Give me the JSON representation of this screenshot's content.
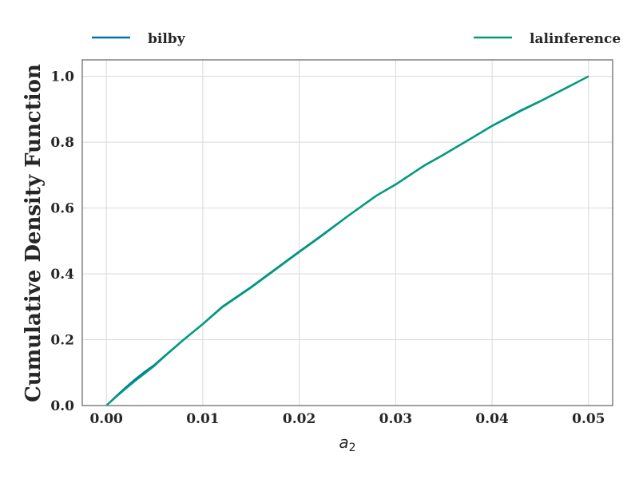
{
  "chart_data": {
    "type": "line",
    "title": "",
    "xlabel": "a",
    "xlabel_sub": "2",
    "ylabel": "Cumulative Density Function",
    "xlim": [
      -0.0025,
      0.0525
    ],
    "ylim": [
      0.0,
      1.05
    ],
    "xticks": [
      0.0,
      0.01,
      0.02,
      0.03,
      0.04,
      0.05
    ],
    "xtick_labels": [
      "0.00",
      "0.01",
      "0.02",
      "0.03",
      "0.04",
      "0.05"
    ],
    "yticks": [
      0.0,
      0.2,
      0.4,
      0.6,
      0.8,
      1.0
    ],
    "ytick_labels": [
      "0.0",
      "0.2",
      "0.4",
      "0.6",
      "0.8",
      "1.0"
    ],
    "grid": true,
    "legend": "top, spanning plot width",
    "series": [
      {
        "name": "bilby",
        "color": "#0072b2",
        "x": [
          0.0,
          0.001,
          0.002,
          0.003,
          0.004,
          0.005,
          0.006,
          0.008,
          0.01,
          0.012,
          0.015,
          0.018,
          0.02,
          0.022,
          0.025,
          0.028,
          0.03,
          0.033,
          0.035,
          0.038,
          0.04,
          0.043,
          0.045,
          0.048,
          0.05
        ],
        "y": [
          0.0,
          0.028,
          0.055,
          0.08,
          0.103,
          0.124,
          0.15,
          0.2,
          0.248,
          0.3,
          0.36,
          0.425,
          0.468,
          0.51,
          0.575,
          0.638,
          0.672,
          0.73,
          0.763,
          0.815,
          0.85,
          0.897,
          0.925,
          0.97,
          1.0
        ]
      },
      {
        "name": "lalinference",
        "color": "#009e73",
        "x": [
          0.0,
          0.001,
          0.002,
          0.003,
          0.004,
          0.005,
          0.006,
          0.008,
          0.01,
          0.012,
          0.015,
          0.018,
          0.02,
          0.022,
          0.025,
          0.028,
          0.03,
          0.033,
          0.035,
          0.038,
          0.04,
          0.043,
          0.045,
          0.048,
          0.05
        ],
        "y": [
          0.0,
          0.026,
          0.051,
          0.075,
          0.098,
          0.121,
          0.148,
          0.199,
          0.247,
          0.298,
          0.358,
          0.423,
          0.466,
          0.508,
          0.574,
          0.637,
          0.671,
          0.729,
          0.762,
          0.814,
          0.849,
          0.895,
          0.924,
          0.969,
          1.0
        ]
      }
    ]
  }
}
